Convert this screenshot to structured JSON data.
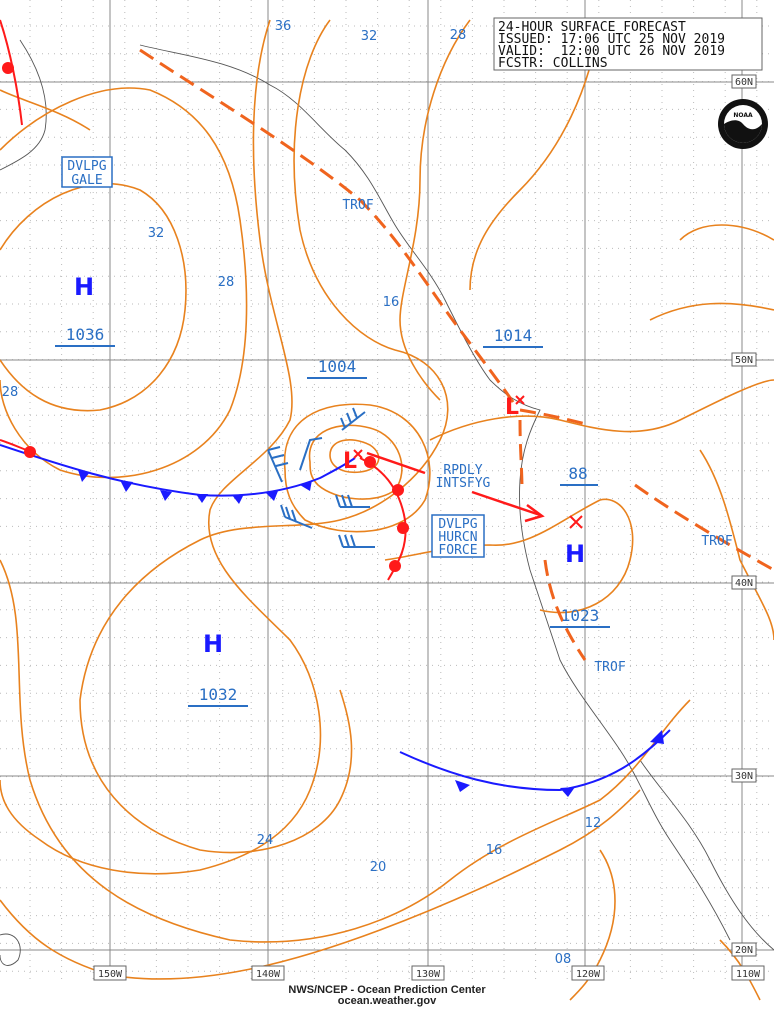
{
  "header": {
    "line1": "24-HOUR SURFACE FORECAST",
    "line2": "ISSUED: 17:06 UTC 25 NOV 2019",
    "line3": "VALID:  12:00 UTC 26 NOV 2019",
    "line4": "FCSTR: COLLINS"
  },
  "logo": {
    "text": "NOAA"
  },
  "footer": {
    "org": "NWS/NCEP - Ocean Prediction Center",
    "url": "ocean.weather.gov"
  },
  "grid": {
    "longitudes": [
      "150W",
      "140W",
      "130W",
      "120W",
      "110W"
    ],
    "latitudes": [
      "60N",
      "50N",
      "40N",
      "30N",
      "20N"
    ]
  },
  "isobar_labels": [
    "36",
    "32",
    "28",
    "32",
    "28",
    "16",
    "28",
    "24",
    "20",
    "16",
    "12",
    "08"
  ],
  "pressure_centers": [
    {
      "type": "H",
      "pressure": "1036"
    },
    {
      "type": "H",
      "pressure": "1032"
    },
    {
      "type": "L",
      "pressure": "1004"
    },
    {
      "type": "L",
      "pressure": "1014"
    },
    {
      "type": "H",
      "pressure": "1023"
    },
    {
      "type": "",
      "pressure": "88"
    }
  ],
  "annotations": {
    "gale": [
      "DVLPG",
      "GALE"
    ],
    "hurricane": [
      "DVLPG",
      "HURCN",
      "FORCE"
    ],
    "intensifying": [
      "RPDLY",
      "INTSFYG"
    ],
    "trof": "TROF"
  },
  "colors": {
    "isobar": "#e8821e",
    "cold_front": "#1a1aff",
    "warm_front": "#ff1a1a",
    "trough": "#f0641e",
    "label": "#2a6fc4"
  }
}
